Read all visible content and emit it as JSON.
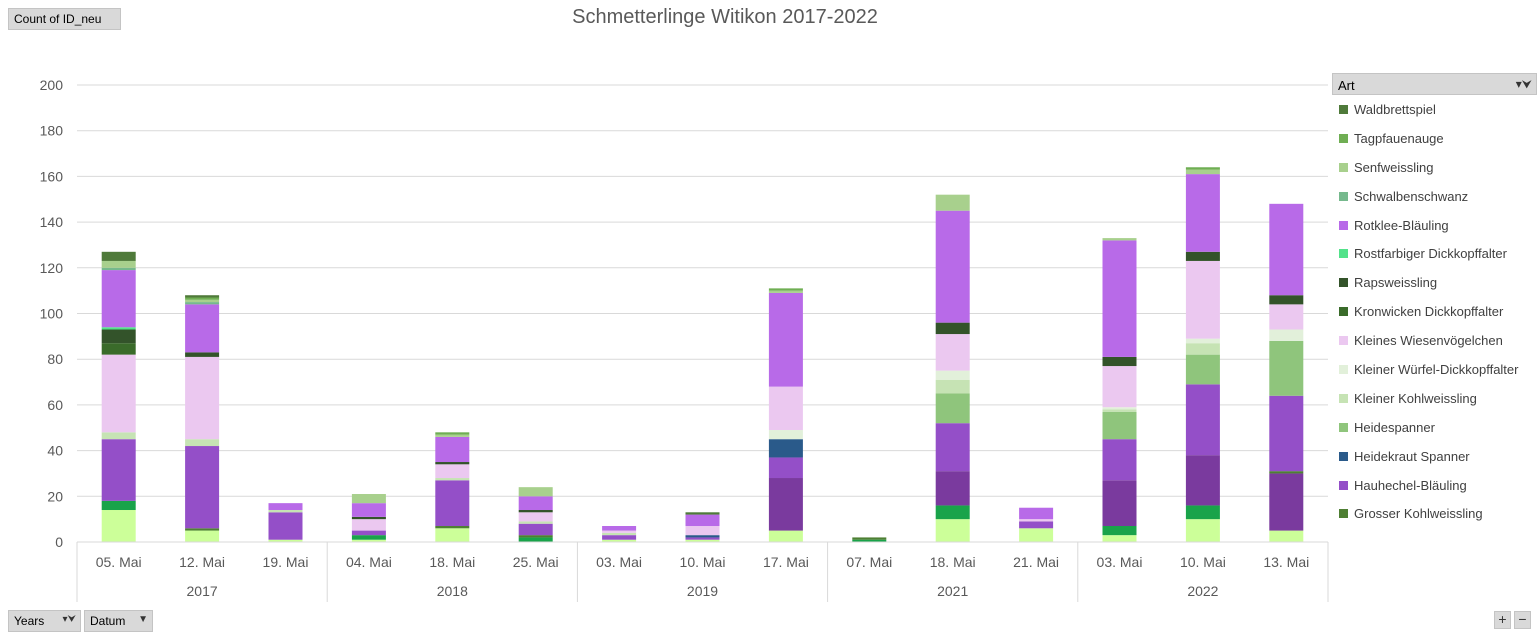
{
  "field_buttons": {
    "value_field": "Count  of ID_neu",
    "row_field_1": "Years",
    "row_field_2": "Datum",
    "legend_field": "Art"
  },
  "icons": {
    "filter": "funnel-icon",
    "dropdown": "dropdown-arrow-icon",
    "zoom_in": "plus-icon",
    "zoom_out": "minus-icon"
  },
  "zoom": {
    "plus": "+",
    "minus": "−"
  },
  "chart_data": {
    "type": "bar",
    "stacked": true,
    "title": "Schmetterlinge Witikon 2017-2022",
    "xlabel": "",
    "ylabel": "",
    "ylim": [
      0,
      200
    ],
    "yticks": [
      0,
      20,
      40,
      60,
      80,
      100,
      120,
      140,
      160,
      180,
      200
    ],
    "grid": true,
    "legend_position": "right",
    "groups": [
      {
        "label": "2017",
        "categories": [
          "05. Mai",
          "12. Mai",
          "19. Mai"
        ]
      },
      {
        "label": "2018",
        "categories": [
          "04. Mai",
          "18. Mai",
          "25. Mai"
        ]
      },
      {
        "label": "2019",
        "categories": [
          "03. Mai",
          "10. Mai",
          "17. Mai"
        ]
      },
      {
        "label": "2021",
        "categories": [
          "07. Mai",
          "18. Mai",
          "21. Mai"
        ]
      },
      {
        "label": "2022",
        "categories": [
          "03. Mai",
          "10. Mai",
          "13. Mai"
        ]
      }
    ],
    "categories": [
      "05. Mai",
      "12. Mai",
      "19. Mai",
      "04. Mai",
      "18. Mai",
      "25. Mai",
      "03. Mai",
      "10. Mai",
      "17. Mai",
      "07. Mai",
      "18. Mai",
      "21. Mai",
      "03. Mai",
      "10. Mai",
      "13. Mai"
    ],
    "series": [
      {
        "name": "",
        "color": "#ccff99",
        "values": [
          14,
          5,
          1,
          1,
          6,
          0,
          1,
          1,
          5,
          0,
          10,
          6,
          3,
          10,
          5
        ]
      },
      {
        "name": "",
        "color": "#19a34a",
        "values": [
          4,
          0,
          0,
          2,
          0,
          2,
          0,
          0,
          0,
          1,
          6,
          0,
          4,
          6,
          0
        ]
      },
      {
        "name": "",
        "color": "#7a3a9e",
        "values": [
          0,
          0,
          0,
          0,
          0,
          0,
          0,
          0,
          23,
          0,
          15,
          0,
          20,
          22,
          25
        ]
      },
      {
        "name": "Grosser Kohlweissling",
        "color": "#4e7f33",
        "values": [
          0,
          1,
          0,
          0,
          1,
          1,
          0,
          0,
          0,
          1,
          0,
          0,
          0,
          0,
          1
        ]
      },
      {
        "name": "Hauhechel-Bläuling",
        "color": "#944fc8",
        "values": [
          27,
          36,
          12,
          2,
          20,
          5,
          2,
          1,
          9,
          0,
          21,
          3,
          18,
          31,
          33
        ]
      },
      {
        "name": "Heidekraut Spanner",
        "color": "#2a5a8a",
        "values": [
          0,
          0,
          0,
          0,
          0,
          0,
          0,
          1,
          8,
          0,
          0,
          0,
          0,
          0,
          0
        ]
      },
      {
        "name": "Heidespanner",
        "color": "#8fc57c",
        "values": [
          0,
          0,
          0,
          0,
          0,
          0,
          0,
          0,
          0,
          0,
          13,
          0,
          12,
          13,
          24
        ]
      },
      {
        "name": "Kleiner Kohlweissling",
        "color": "#c6e3b4",
        "values": [
          3,
          3,
          1,
          0,
          1,
          1,
          1,
          0,
          0,
          0,
          6,
          0,
          1,
          5,
          0
        ]
      },
      {
        "name": "Kleiner Würfel-Dickkopffalter",
        "color": "#e2f0da",
        "values": [
          0,
          0,
          0,
          0,
          0,
          0,
          0,
          0,
          4,
          0,
          4,
          0,
          1,
          2,
          5
        ]
      },
      {
        "name": "Kleines Wiesenvögelchen",
        "color": "#ebc8f0",
        "values": [
          34,
          36,
          0,
          5,
          6,
          4,
          1,
          4,
          19,
          0,
          16,
          1,
          18,
          34,
          11
        ]
      },
      {
        "name": "Kronwicken Dickkopffalter",
        "color": "#3a6b2a",
        "values": [
          5,
          0,
          0,
          0,
          0,
          0,
          0,
          0,
          0,
          0,
          0,
          0,
          0,
          0,
          0
        ]
      },
      {
        "name": "Rapsweissling",
        "color": "#33532a",
        "values": [
          6,
          2,
          0,
          1,
          1,
          1,
          0,
          0,
          0,
          0,
          5,
          0,
          4,
          4,
          4
        ]
      },
      {
        "name": "Rostfarbiger Dickkopffalter",
        "color": "#53e28a",
        "values": [
          1,
          0,
          0,
          0,
          0,
          0,
          0,
          0,
          0,
          0,
          0,
          0,
          0,
          0,
          0
        ]
      },
      {
        "name": "Rotklee-Bläuling",
        "color": "#b86ae8",
        "values": [
          25,
          21,
          3,
          6,
          11,
          6,
          2,
          5,
          41,
          0,
          49,
          5,
          51,
          34,
          40
        ]
      },
      {
        "name": "Schwalbenschwanz",
        "color": "#76b98d",
        "values": [
          1,
          1,
          0,
          0,
          0,
          0,
          0,
          0,
          0,
          0,
          0,
          0,
          0,
          0,
          0
        ]
      },
      {
        "name": "Senfweissling",
        "color": "#a8d08d",
        "values": [
          3,
          1,
          0,
          4,
          1,
          4,
          0,
          0,
          1,
          0,
          7,
          0,
          1,
          2,
          0
        ]
      },
      {
        "name": "Tagpfauenauge",
        "color": "#6fae53",
        "values": [
          0,
          1,
          0,
          0,
          1,
          0,
          0,
          0,
          1,
          0,
          0,
          0,
          0,
          1,
          0
        ]
      },
      {
        "name": "Waldbrettspiel",
        "color": "#4f7a3a",
        "values": [
          4,
          1,
          0,
          0,
          0,
          0,
          0,
          1,
          0,
          0,
          0,
          0,
          0,
          0,
          0
        ]
      }
    ]
  }
}
